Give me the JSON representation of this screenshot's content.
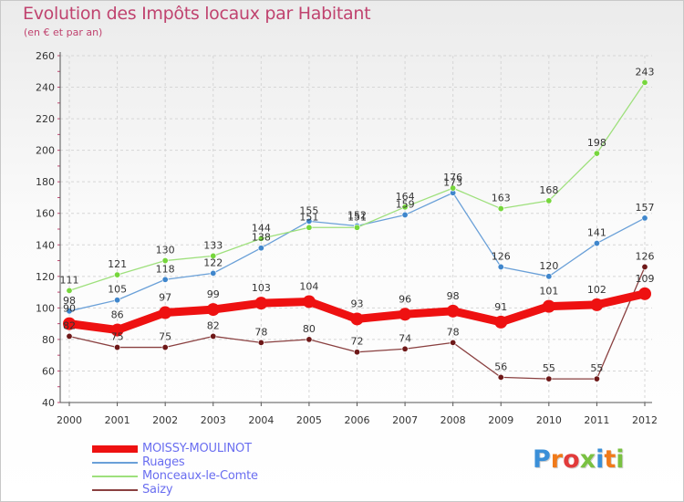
{
  "title": "Evolution des Impôts locaux par Habitant",
  "subtitle": "(en € et par an)",
  "logo_text": "Proxiti",
  "chart_data": {
    "type": "line",
    "x": [
      2000,
      2001,
      2002,
      2003,
      2004,
      2005,
      2006,
      2007,
      2008,
      2009,
      2010,
      2011,
      2012
    ],
    "ylim": [
      40,
      260
    ],
    "yticks": [
      40,
      60,
      80,
      100,
      120,
      140,
      160,
      180,
      200,
      220,
      240,
      260
    ],
    "series": [
      {
        "name": "MOISSY-MOULINOT",
        "color": "#ee1111",
        "marker": "#ee1111",
        "width": 9,
        "values": [
          90,
          86,
          97,
          99,
          103,
          104,
          93,
          96,
          98,
          91,
          101,
          102,
          109
        ]
      },
      {
        "name": "Ruages",
        "color": "#6aa0d8",
        "marker": "#3f86cc",
        "width": 1.3,
        "values": [
          98,
          105,
          118,
          122,
          138,
          155,
          152,
          159,
          173,
          126,
          120,
          141,
          157
        ]
      },
      {
        "name": "Monceaux-le-Comte",
        "color": "#9ee07c",
        "marker": "#76d63c",
        "width": 1.3,
        "values": [
          111,
          121,
          130,
          133,
          144,
          151,
          151,
          164,
          176,
          163,
          168,
          198,
          243
        ]
      },
      {
        "name": "Saizy",
        "color": "#8a4040",
        "marker": "#6e1818",
        "width": 1.3,
        "values": [
          82,
          75,
          75,
          82,
          78,
          80,
          72,
          74,
          78,
          56,
          55,
          55,
          126
        ]
      }
    ]
  }
}
